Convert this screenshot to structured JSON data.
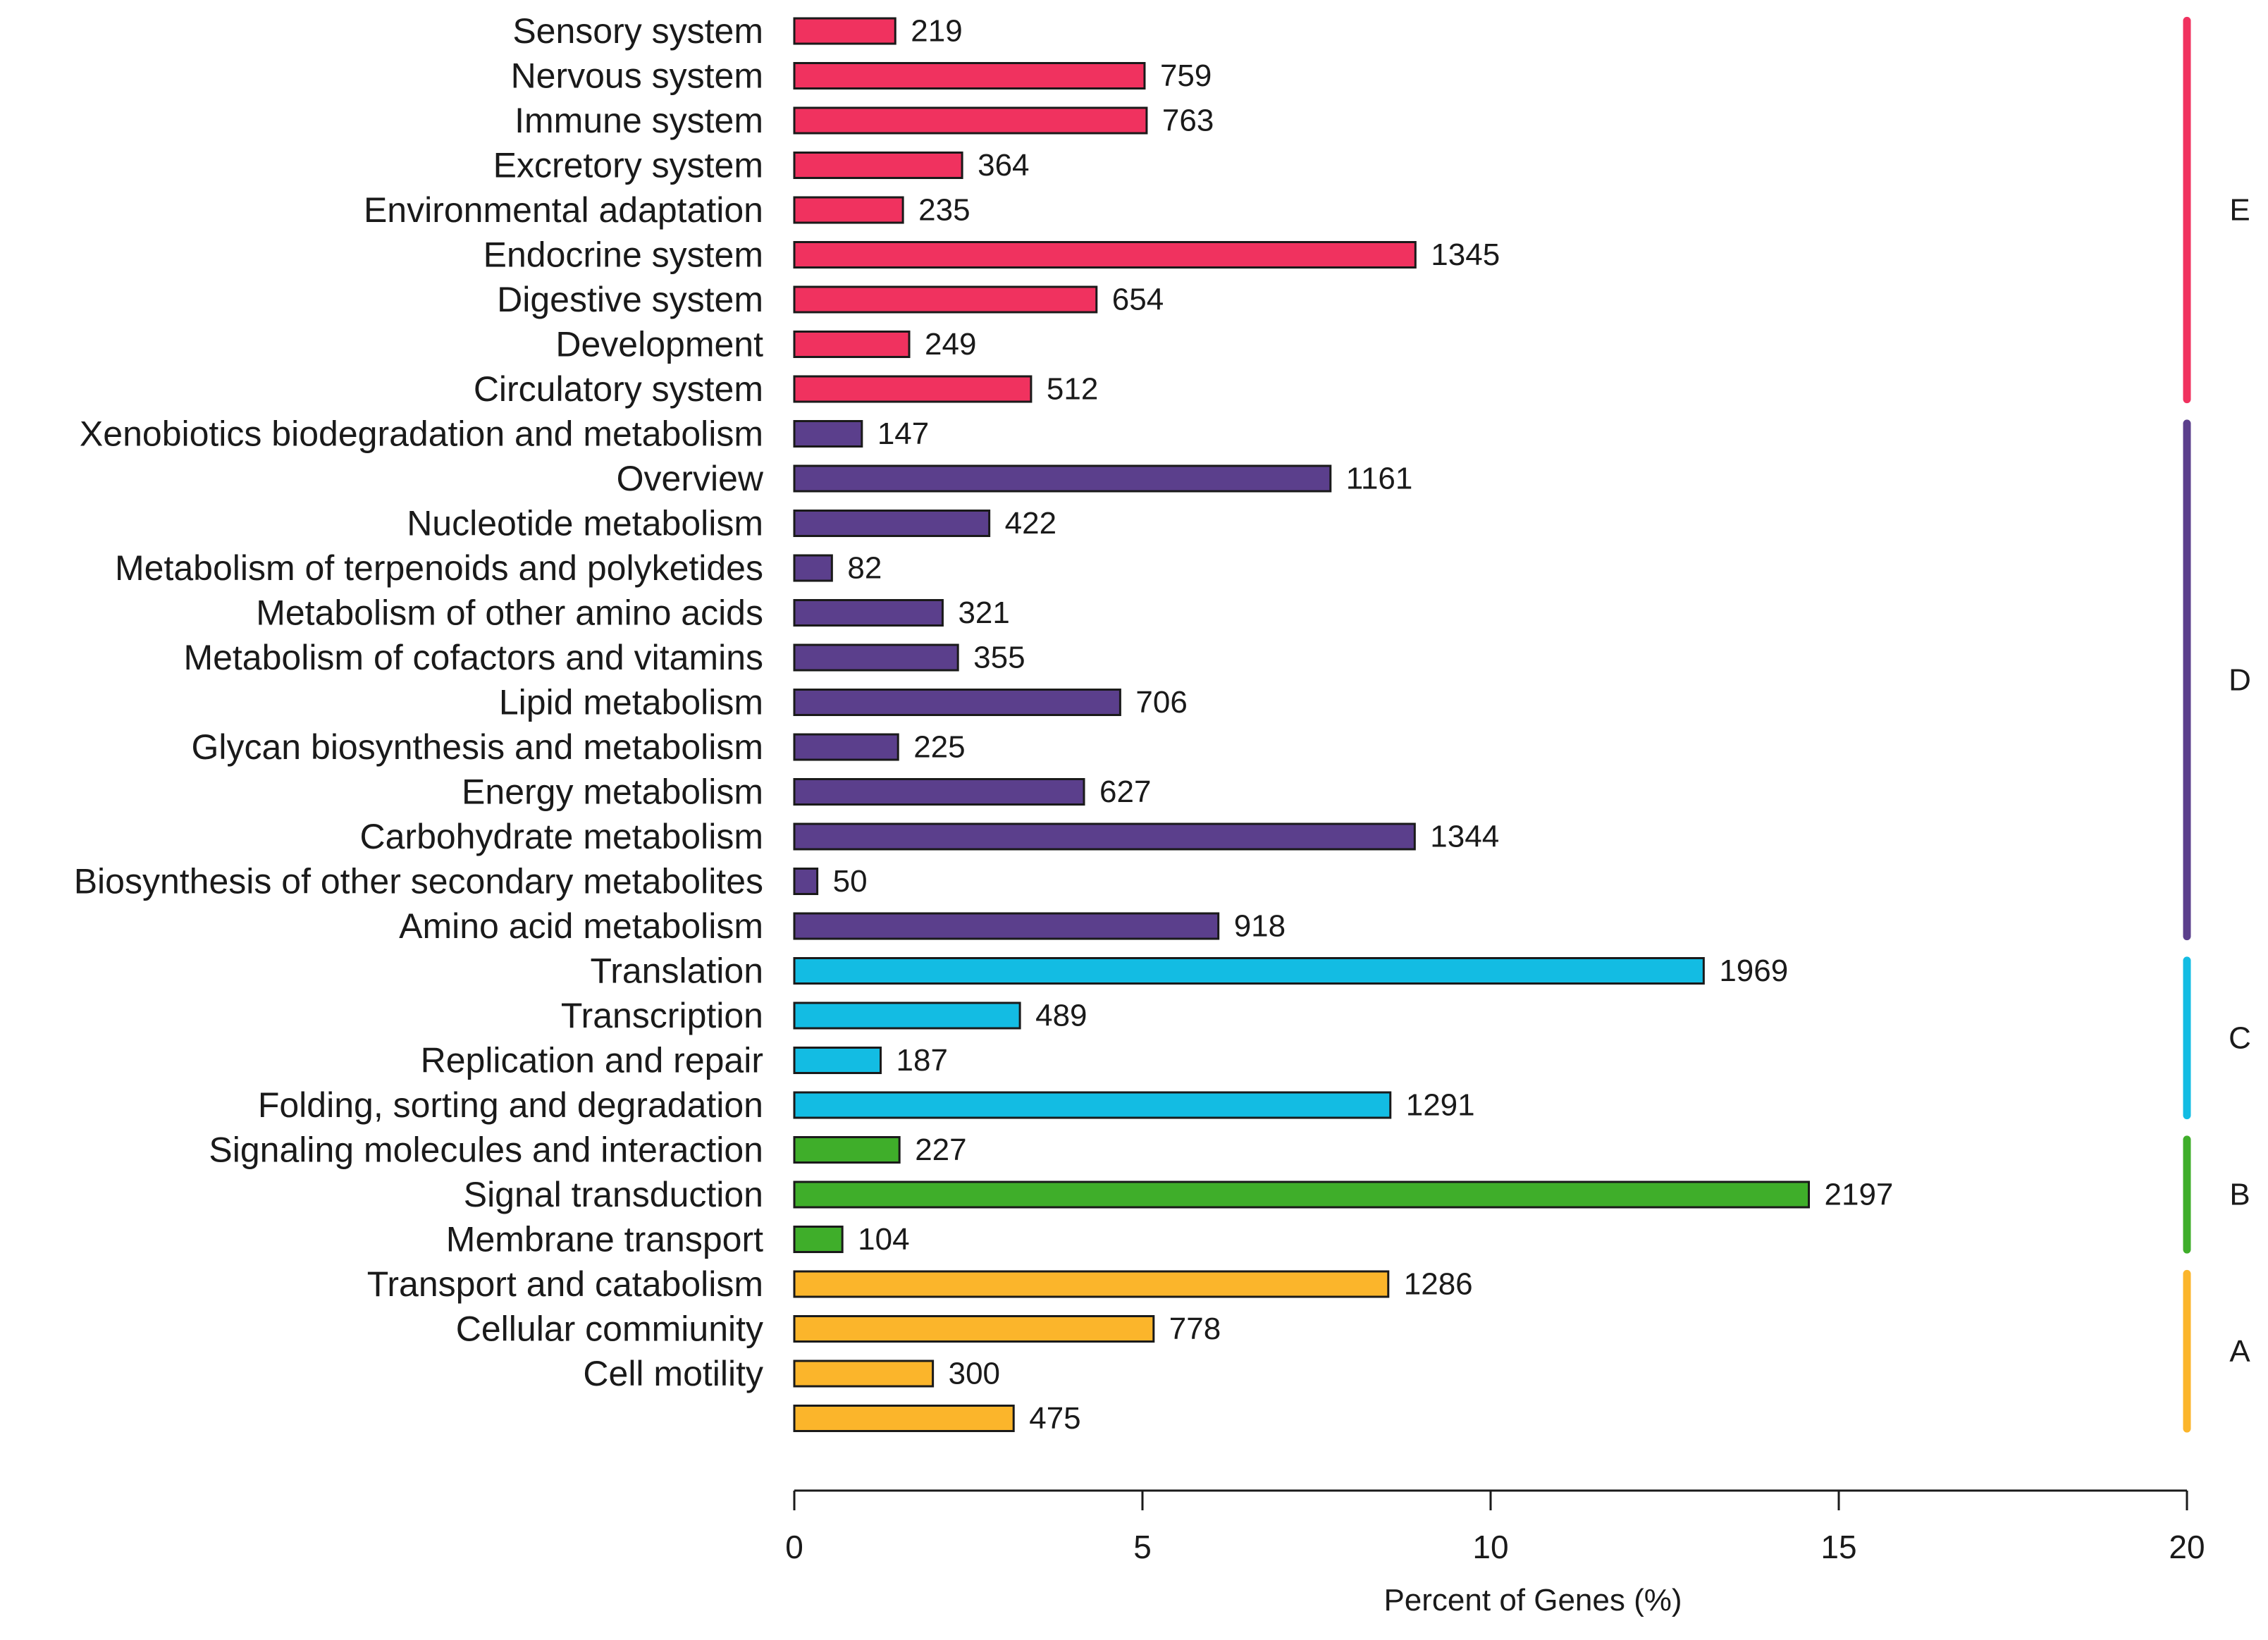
{
  "chart_data": {
    "type": "bar",
    "orientation": "horizontal",
    "title": "",
    "xlabel": "Percent of Genes (%)",
    "ylabel": "",
    "xlim": [
      0,
      20
    ],
    "xticks": [
      0,
      5,
      10,
      15,
      20
    ],
    "grid": false,
    "legend": "none",
    "value_label_meaning": "gene count",
    "groups": [
      {
        "name": "E",
        "color": "#f0325f"
      },
      {
        "name": "D",
        "color": "#5b3f8c"
      },
      {
        "name": "C",
        "color": "#13bce3"
      },
      {
        "name": "B",
        "color": "#3fae2a"
      },
      {
        "name": "A",
        "color": "#fbb52b"
      }
    ],
    "bars": [
      {
        "category": "Sensory system",
        "group": "E",
        "count": 219,
        "percent": 1.45
      },
      {
        "category": "Nervous system",
        "group": "E",
        "count": 759,
        "percent": 5.03
      },
      {
        "category": "Immune system",
        "group": "E",
        "count": 763,
        "percent": 5.06
      },
      {
        "category": "Excretory system",
        "group": "E",
        "count": 364,
        "percent": 2.41
      },
      {
        "category": "Environmental adaptation",
        "group": "E",
        "count": 235,
        "percent": 1.56
      },
      {
        "category": "Endocrine system",
        "group": "E",
        "count": 1345,
        "percent": 8.92
      },
      {
        "category": "Digestive system",
        "group": "E",
        "count": 654,
        "percent": 4.34
      },
      {
        "category": "Development",
        "group": "E",
        "count": 249,
        "percent": 1.65
      },
      {
        "category": "Circulatory system",
        "group": "E",
        "count": 512,
        "percent": 3.4
      },
      {
        "category": "Xenobiotics biodegradation and metabolism",
        "group": "D",
        "count": 147,
        "percent": 0.97
      },
      {
        "category": "Overview",
        "group": "D",
        "count": 1161,
        "percent": 7.7
      },
      {
        "category": "Nucleotide metabolism",
        "group": "D",
        "count": 422,
        "percent": 2.8
      },
      {
        "category": "Metabolism of terpenoids and polyketides",
        "group": "D",
        "count": 82,
        "percent": 0.54
      },
      {
        "category": "Metabolism of other amino acids",
        "group": "D",
        "count": 321,
        "percent": 2.13
      },
      {
        "category": "Metabolism of cofactors and vitamins",
        "group": "D",
        "count": 355,
        "percent": 2.35
      },
      {
        "category": "Lipid metabolism",
        "group": "D",
        "count": 706,
        "percent": 4.68
      },
      {
        "category": "Glycan biosynthesis and metabolism",
        "group": "D",
        "count": 225,
        "percent": 1.49
      },
      {
        "category": "Energy metabolism",
        "group": "D",
        "count": 627,
        "percent": 4.16
      },
      {
        "category": "Carbohydrate metabolism",
        "group": "D",
        "count": 1344,
        "percent": 8.91
      },
      {
        "category": "Biosynthesis of other secondary metabolites",
        "group": "D",
        "count": 50,
        "percent": 0.33
      },
      {
        "category": "Amino acid metabolism",
        "group": "D",
        "count": 918,
        "percent": 6.09
      },
      {
        "category": "Translation",
        "group": "C",
        "count": 1969,
        "percent": 13.06
      },
      {
        "category": "Transcription",
        "group": "C",
        "count": 489,
        "percent": 3.24
      },
      {
        "category": "Replication and repair",
        "group": "C",
        "count": 187,
        "percent": 1.24
      },
      {
        "category": "Folding, sorting and degradation",
        "group": "C",
        "count": 1291,
        "percent": 8.56
      },
      {
        "category": "Signaling molecules and interaction",
        "group": "B",
        "count": 227,
        "percent": 1.51
      },
      {
        "category": "Signal transduction",
        "group": "B",
        "count": 2197,
        "percent": 14.57
      },
      {
        "category": "Membrane transport",
        "group": "B",
        "count": 104,
        "percent": 0.69
      },
      {
        "category": "Transport and catabolism",
        "group": "A",
        "count": 1286,
        "percent": 8.53
      },
      {
        "category": "Cellular commiunity",
        "group": "A",
        "count": 778,
        "percent": 5.16
      },
      {
        "category": "Cell motility",
        "group": "A",
        "count": 300,
        "percent": 1.99
      },
      {
        "category": "",
        "group": "A",
        "count": 475,
        "percent": 3.15
      }
    ]
  }
}
